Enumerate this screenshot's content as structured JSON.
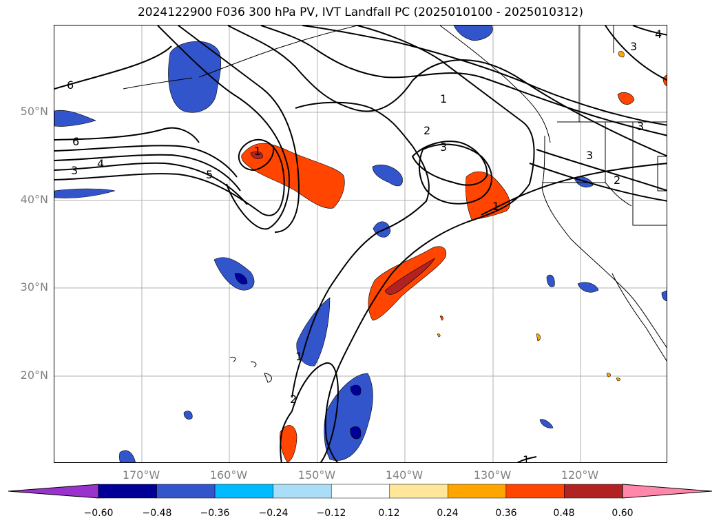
{
  "title": "2024122900 F036 300 hPa PV, IVT Landfall PC (2025010100 - 2025010312)",
  "lat_labels": [
    "50°N",
    "40°N",
    "30°N",
    "20°N"
  ],
  "lon_labels": [
    "170°W",
    "160°W",
    "150°W",
    "140°W",
    "130°W",
    "120°W"
  ],
  "contour_labels": [
    "6",
    "6",
    "3",
    "4",
    "5",
    "1",
    "1",
    "2",
    "3",
    "1",
    "1",
    "2",
    "3",
    "3",
    "2",
    "3",
    "4",
    "1"
  ],
  "colorbar": {
    "tick_labels": [
      "−0.60",
      "−0.48",
      "−0.36",
      "−0.24",
      "−0.12",
      "0.12",
      "0.24",
      "0.36",
      "0.48",
      "0.60"
    ],
    "colors": [
      "#9933cc",
      "#000099",
      "#3355cc",
      "#00bbff",
      "#aaddf7",
      "#ffffff",
      "#ffe699",
      "#ffa500",
      "#ff4500",
      "#b22222",
      "#ff88aa"
    ]
  }
}
